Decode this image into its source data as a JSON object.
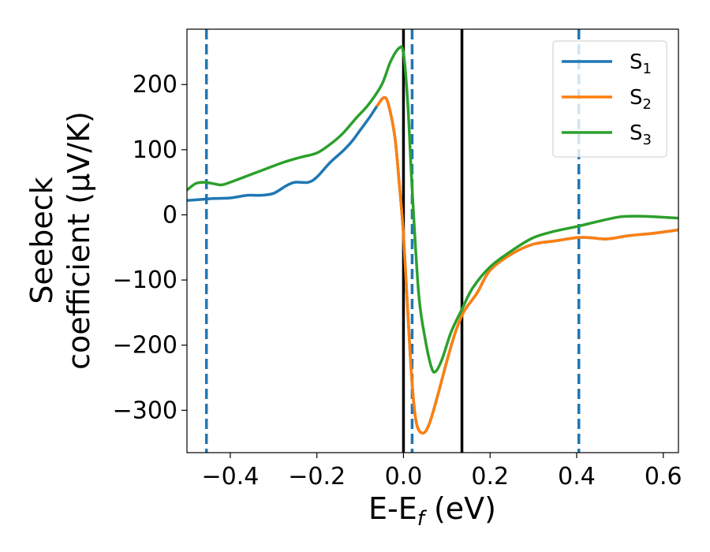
{
  "chart_data": {
    "type": "line",
    "xlabel": "E-E",
    "xlabel_sub": "f",
    "xlabel_unit": " (eV)",
    "ylabel_line1": "Seebeck",
    "ylabel_line2": "coefficient  (μV/K)",
    "xlim": [
      -0.5,
      0.635
    ],
    "ylim": [
      -365,
      285
    ],
    "xticks": [
      -0.4,
      -0.2,
      0.0,
      0.2,
      0.4,
      0.6
    ],
    "xtick_labels": [
      "−0.4",
      "−0.2",
      "0.0",
      "0.2",
      "0.4",
      "0.6"
    ],
    "yticks": [
      200,
      100,
      0,
      -100,
      -200,
      -300
    ],
    "ytick_labels": [
      "200",
      "100",
      "0",
      "−100",
      "−200",
      "−300"
    ],
    "legend_position": "top-right",
    "grid": false,
    "series": [
      {
        "name": "S",
        "sub": "1",
        "color": "#1f77b4",
        "x": [
          -0.5,
          -0.46,
          -0.44,
          -0.4,
          -0.36,
          -0.33,
          -0.3,
          -0.27,
          -0.25,
          -0.22,
          -0.2,
          -0.17,
          -0.14,
          -0.12,
          -0.1,
          -0.08,
          -0.06,
          -0.045,
          -0.035,
          -0.02,
          -0.01,
          0.0,
          0.01,
          0.02,
          0.03,
          0.045,
          0.06,
          0.08,
          0.1,
          0.12,
          0.14,
          0.17,
          0.2,
          0.25,
          0.3,
          0.35,
          0.4,
          0.43,
          0.47,
          0.52,
          0.58,
          0.635
        ],
        "y": [
          22,
          24,
          25,
          26,
          30,
          30,
          33,
          45,
          50,
          50,
          58,
          80,
          98,
          112,
          130,
          148,
          168,
          180,
          170,
          120,
          50,
          -30,
          -150,
          -260,
          -320,
          -335,
          -320,
          -275,
          -225,
          -180,
          -148,
          -120,
          -85,
          -60,
          -45,
          -40,
          -35,
          -35,
          -37,
          -32,
          -28,
          -23
        ]
      },
      {
        "name": "S",
        "sub": "2",
        "color": "#ff7f0e",
        "x": [
          -0.06,
          -0.045,
          -0.035,
          -0.02,
          -0.01,
          0.0,
          0.01,
          0.02,
          0.03,
          0.045,
          0.06,
          0.08,
          0.1,
          0.12,
          0.14,
          0.17,
          0.2,
          0.25,
          0.3,
          0.35,
          0.4,
          0.43,
          0.47,
          0.52,
          0.58,
          0.635
        ],
        "y": [
          168,
          180,
          170,
          120,
          50,
          -30,
          -150,
          -260,
          -320,
          -335,
          -320,
          -275,
          -225,
          -180,
          -148,
          -120,
          -85,
          -60,
          -45,
          -40,
          -35,
          -35,
          -37,
          -32,
          -28,
          -23
        ]
      },
      {
        "name": "S",
        "sub": "3",
        "color": "#2ca02c",
        "x": [
          -0.5,
          -0.48,
          -0.46,
          -0.44,
          -0.42,
          -0.4,
          -0.36,
          -0.32,
          -0.28,
          -0.24,
          -0.2,
          -0.17,
          -0.14,
          -0.11,
          -0.08,
          -0.05,
          -0.03,
          -0.01,
          0.0,
          0.01,
          0.02,
          0.035,
          0.05,
          0.065,
          0.075,
          0.09,
          0.11,
          0.135,
          0.16,
          0.2,
          0.25,
          0.3,
          0.35,
          0.4,
          0.45,
          0.5,
          0.54,
          0.58,
          0.635
        ],
        "y": [
          38,
          48,
          50,
          48,
          46,
          50,
          60,
          70,
          80,
          88,
          95,
          108,
          125,
          148,
          170,
          200,
          235,
          256,
          248,
          170,
          40,
          -120,
          -190,
          -235,
          -240,
          -220,
          -180,
          -145,
          -112,
          -80,
          -55,
          -35,
          -25,
          -18,
          -10,
          -3,
          -2,
          -3,
          -5
        ]
      }
    ],
    "vlines_solid": [
      0.0,
      0.135
    ],
    "vlines_dashed": [
      -0.455,
      0.02,
      0.405
    ],
    "vline_solid_color": "#000000",
    "vline_dashed_color": "#1f77b4"
  }
}
